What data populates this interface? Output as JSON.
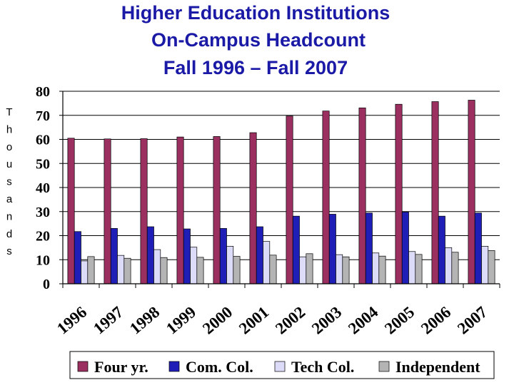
{
  "chart_data": {
    "type": "bar",
    "title_lines": [
      "Higher Education Institutions",
      "On-Campus Headcount",
      "Fall 1996 – Fall 2007"
    ],
    "ylabel": "Thousands",
    "categories": [
      "1996",
      "1997",
      "1998",
      "1999",
      "2000",
      "2001",
      "2002",
      "2003",
      "2004",
      "2005",
      "2006",
      "2007"
    ],
    "yticks": [
      "0",
      "10",
      "20",
      "30",
      "40",
      "50",
      "60",
      "70",
      "80"
    ],
    "ylim": [
      0,
      80
    ],
    "grid": true,
    "legend_position": "bottom",
    "series": [
      {
        "name": "Four yr.",
        "color": "#9b3060",
        "values": [
          60.5,
          60.2,
          60.3,
          61,
          61.2,
          62.8,
          69.7,
          71.8,
          73.1,
          74.6,
          75.7,
          76.3
        ]
      },
      {
        "name": "Com. Col.",
        "color": "#1f1fb8",
        "values": [
          21.7,
          23,
          23.7,
          22.8,
          23,
          23.7,
          28.1,
          28.9,
          29.4,
          29.8,
          28.1,
          29.4
        ]
      },
      {
        "name": "Tech Col.",
        "color": "#dcdcf8",
        "values": [
          9.5,
          11.8,
          14.2,
          15.2,
          15.6,
          17.6,
          11.2,
          12.1,
          12.8,
          13.4,
          15,
          15.6
        ]
      },
      {
        "name": "Independent",
        "color": "#b4b4b4",
        "values": [
          11.3,
          10.6,
          10.9,
          11,
          11.4,
          11.9,
          12.5,
          11.2,
          11.5,
          12.2,
          13.1,
          13.8
        ]
      }
    ]
  }
}
